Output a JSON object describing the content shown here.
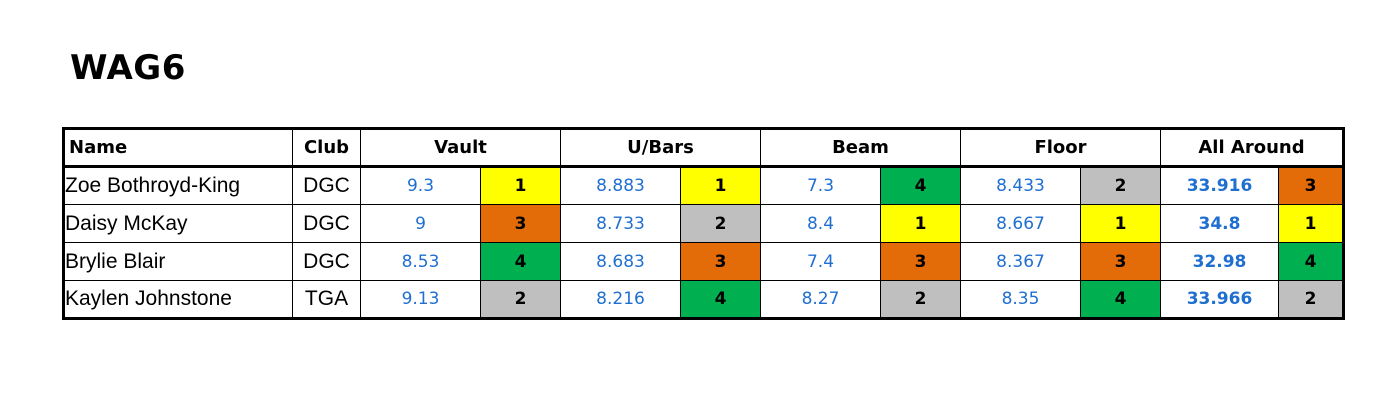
{
  "title": "WAG6",
  "headers": {
    "name": "Name",
    "club": "Club",
    "vault": "Vault",
    "ubars": "U/Bars",
    "beam": "Beam",
    "floor": "Floor",
    "all_around": "All Around"
  },
  "rank_colors": {
    "1": "#ffff00",
    "2": "#bfbfbf",
    "3": "#e36c09",
    "4": "#00b050"
  },
  "rows": [
    {
      "name": "Zoe Bothroyd-King",
      "club": "DGC",
      "vault": "9.3",
      "vault_rank": "1",
      "ubars": "8.883",
      "ubars_rank": "1",
      "beam": "7.3",
      "beam_rank": "4",
      "floor": "8.433",
      "floor_rank": "2",
      "aa": "33.916",
      "aa_rank": "3"
    },
    {
      "name": "Daisy McKay",
      "club": "DGC",
      "vault": "9",
      "vault_rank": "3",
      "ubars": "8.733",
      "ubars_rank": "2",
      "beam": "8.4",
      "beam_rank": "1",
      "floor": "8.667",
      "floor_rank": "1",
      "aa": "34.8",
      "aa_rank": "1"
    },
    {
      "name": "Brylie Blair",
      "club": "DGC",
      "vault": "8.53",
      "vault_rank": "4",
      "ubars": "8.683",
      "ubars_rank": "3",
      "beam": "7.4",
      "beam_rank": "3",
      "floor": "8.367",
      "floor_rank": "3",
      "aa": "32.98",
      "aa_rank": "4"
    },
    {
      "name": "Kaylen Johnstone",
      "club": "TGA",
      "vault": "9.13",
      "vault_rank": "2",
      "ubars": "8.216",
      "ubars_rank": "4",
      "beam": "8.27",
      "beam_rank": "2",
      "floor": "8.35",
      "floor_rank": "4",
      "aa": "33.966",
      "aa_rank": "2"
    }
  ]
}
